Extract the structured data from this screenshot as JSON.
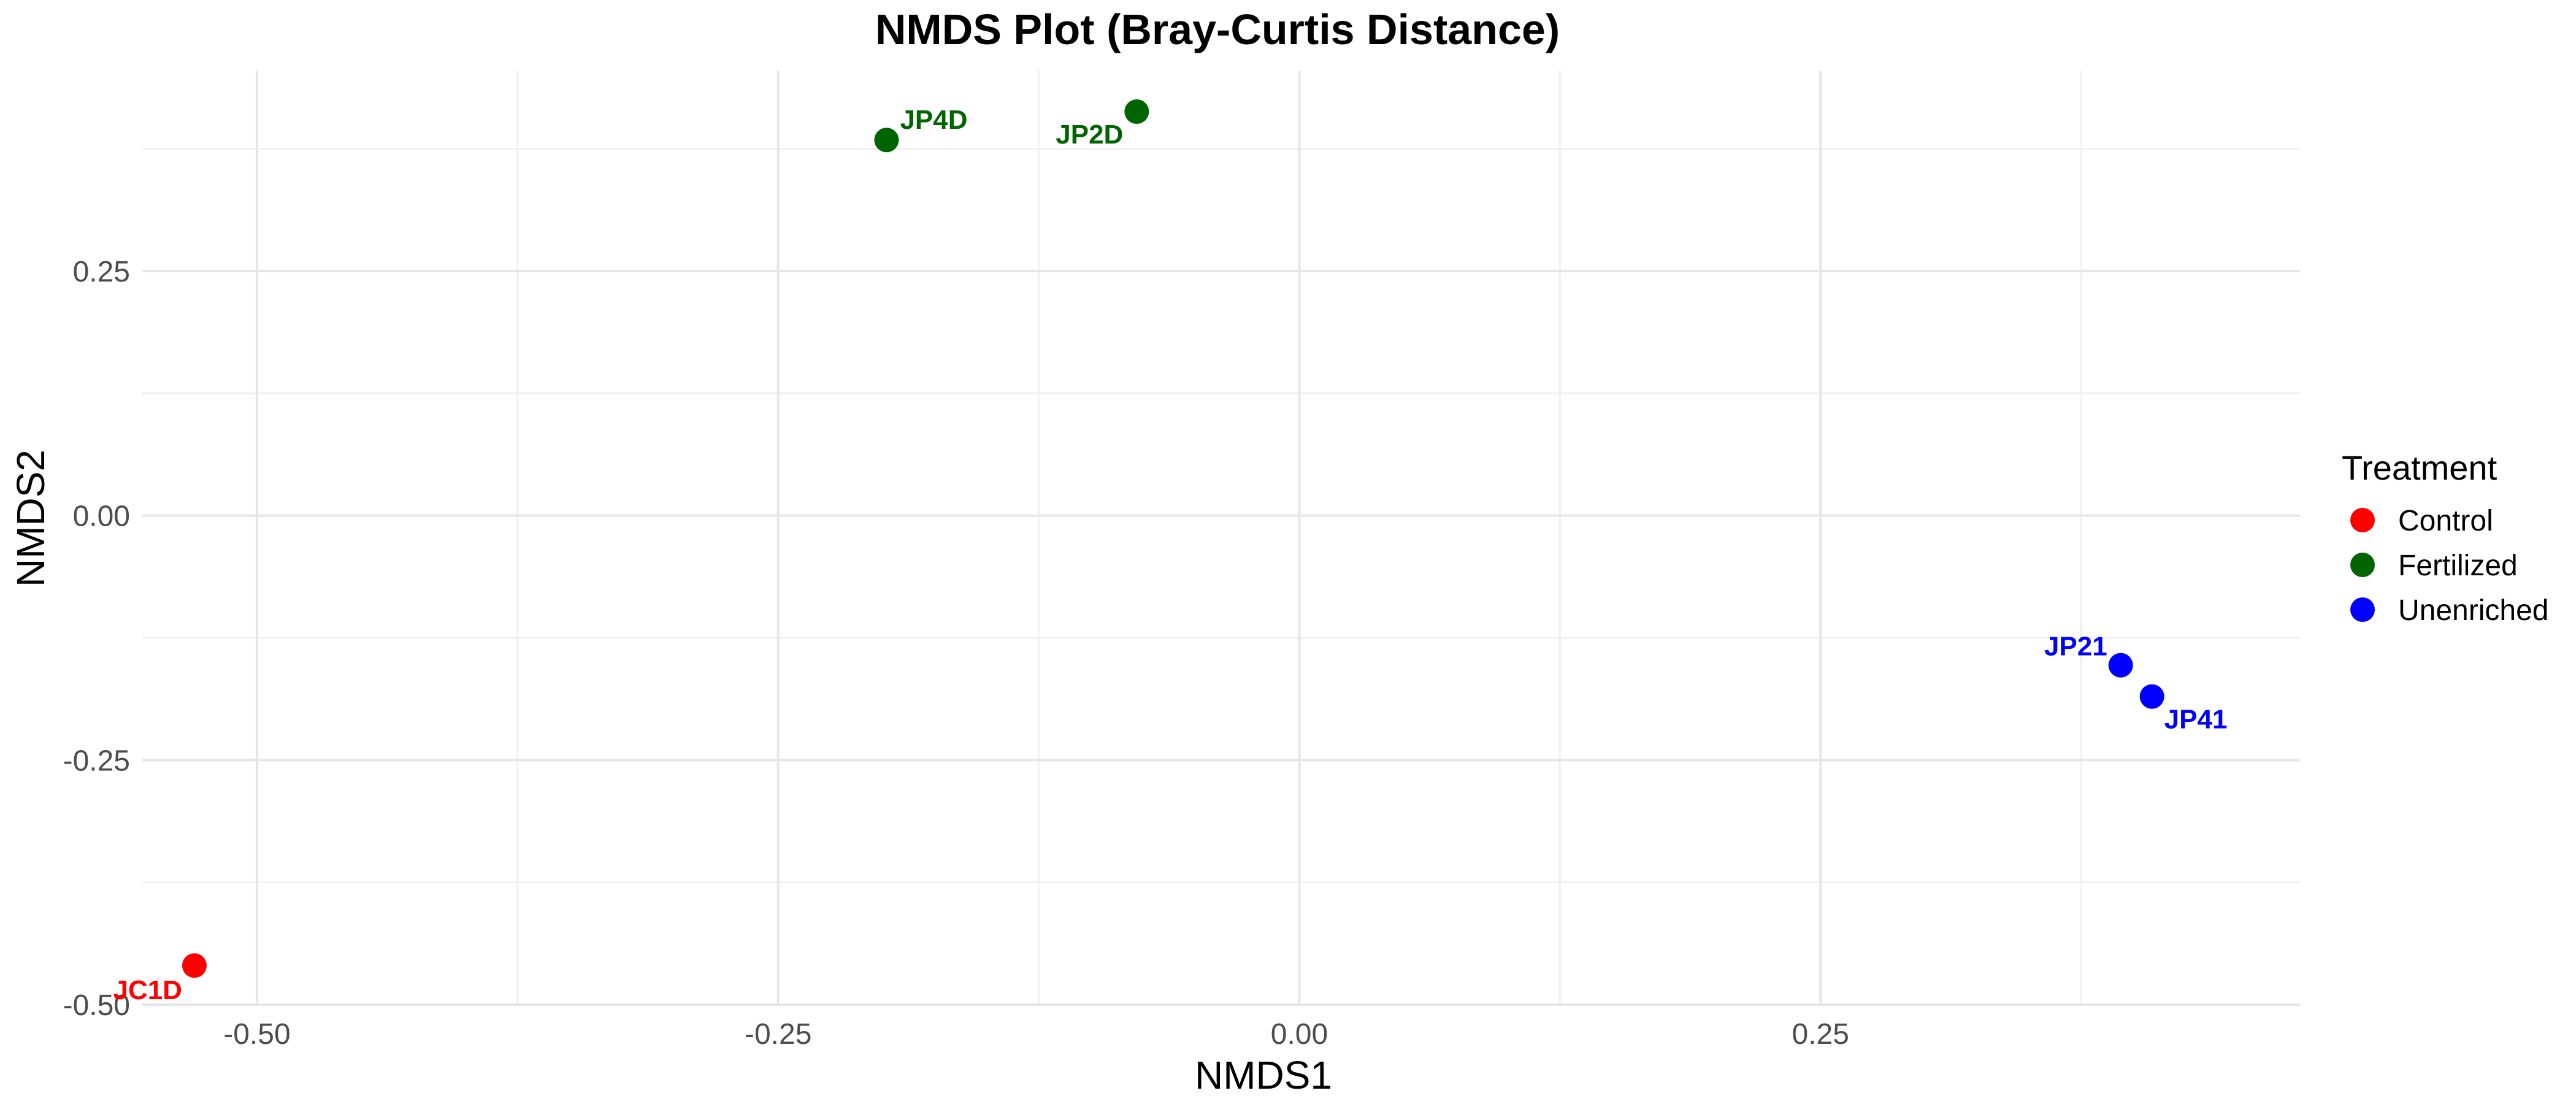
{
  "chart_data": {
    "type": "scatter",
    "title": "NMDS Plot (Bray-Curtis Distance)",
    "xlabel": "NMDS1",
    "ylabel": "NMDS2",
    "xlim": [
      -0.555,
      0.48
    ],
    "ylim": [
      -0.5,
      0.455
    ],
    "x_ticks": [
      -0.5,
      -0.25,
      0.0,
      0.25
    ],
    "x_tick_labels": [
      "-0.50",
      "-0.25",
      "0.00",
      "0.25"
    ],
    "y_ticks": [
      -0.5,
      -0.25,
      0.0,
      0.25
    ],
    "y_tick_labels": [
      "-0.50",
      "-0.25",
      "0.00",
      "0.25"
    ],
    "grid": true,
    "legend": {
      "title": "Treatment",
      "position": "right",
      "entries": [
        {
          "name": "Control",
          "color": "#ff0000"
        },
        {
          "name": "Fertilized",
          "color": "#006400"
        },
        {
          "name": "Unenriched",
          "color": "#0000ff"
        }
      ]
    },
    "series": [
      {
        "name": "Control",
        "color": "#ff0000",
        "points": [
          {
            "x": -0.53,
            "y": -0.46,
            "label": "JC1D"
          }
        ]
      },
      {
        "name": "Fertilized",
        "color": "#006400",
        "points": [
          {
            "x": -0.198,
            "y": 0.384,
            "label": "JP4D"
          },
          {
            "x": -0.078,
            "y": 0.413,
            "label": "JP2D"
          }
        ]
      },
      {
        "name": "Unenriched",
        "color": "#0000ff",
        "points": [
          {
            "x": 0.394,
            "y": -0.153,
            "label": "JP21"
          },
          {
            "x": 0.409,
            "y": -0.185,
            "label": "JP41"
          }
        ]
      }
    ]
  }
}
